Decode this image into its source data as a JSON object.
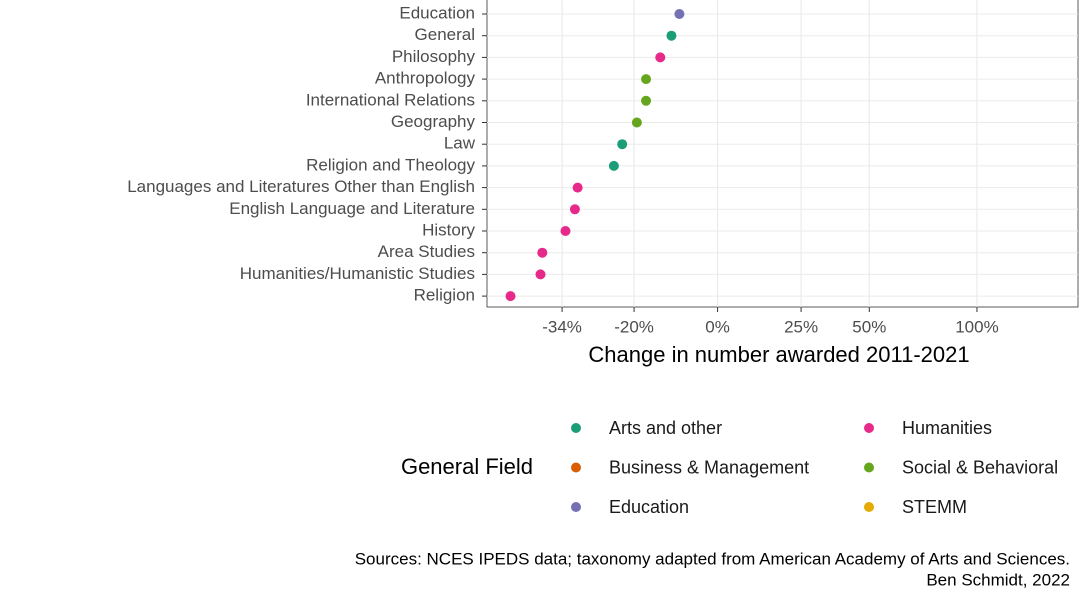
{
  "chart_data": {
    "type": "dot",
    "x_label": "Change in number awarded 2011-2021",
    "legend_title": "General Field",
    "caption": [
      "Sources: NCES IPEDS data; taxonomy adapted from American Academy of Arts and Sciences.",
      "Ben Schmidt, 2022"
    ],
    "xscale": "log-ratio",
    "xlim": [
      -46,
      162
    ],
    "xticks": [
      {
        "value": -34,
        "label": "-34%"
      },
      {
        "value": -20,
        "label": "-20%"
      },
      {
        "value": 0,
        "label": "0%"
      },
      {
        "value": 25,
        "label": "25%"
      },
      {
        "value": 50,
        "label": "50%"
      },
      {
        "value": 100,
        "label": "100%"
      }
    ],
    "grid": true,
    "categories": [
      "Education",
      "General",
      "Philosophy",
      "Anthropology",
      "International Relations",
      "Geography",
      "Law",
      "Religion and Theology",
      "Languages and Literatures Other than English",
      "English Language and Literature",
      "History",
      "Area Studies",
      "Humanities/Humanistic Studies",
      "Religion"
    ],
    "series": [
      {
        "name": "Arts and other",
        "color": "#1b9e77",
        "values": [
          null,
          -11.6,
          null,
          null,
          null,
          null,
          -22.5,
          -24.2,
          null,
          null,
          null,
          null,
          null,
          null
        ]
      },
      {
        "name": "Business & Management",
        "color": "#d95f02",
        "values": [
          null,
          null,
          null,
          null,
          null,
          null,
          null,
          null,
          null,
          null,
          null,
          null,
          null,
          null
        ]
      },
      {
        "name": "Education",
        "color": "#7570b3",
        "values": [
          -9.7,
          null,
          null,
          null,
          null,
          null,
          null,
          null,
          null,
          null,
          null,
          null,
          null,
          null
        ]
      },
      {
        "name": "Humanities",
        "color": "#e7298a",
        "values": [
          null,
          null,
          -14.2,
          null,
          null,
          null,
          null,
          null,
          -31.2,
          -31.7,
          -33.4,
          -37.4,
          -37.7,
          -42.5
        ]
      },
      {
        "name": "Social & Behavioral",
        "color": "#66a61e",
        "values": [
          null,
          null,
          null,
          -17.4,
          -17.4,
          -19.4,
          null,
          null,
          null,
          null,
          null,
          null,
          null,
          null
        ]
      },
      {
        "name": "STEMM",
        "color": "#e6ab02",
        "values": [
          null,
          null,
          null,
          null,
          null,
          null,
          null,
          null,
          null,
          null,
          null,
          null,
          null,
          null
        ]
      }
    ]
  }
}
